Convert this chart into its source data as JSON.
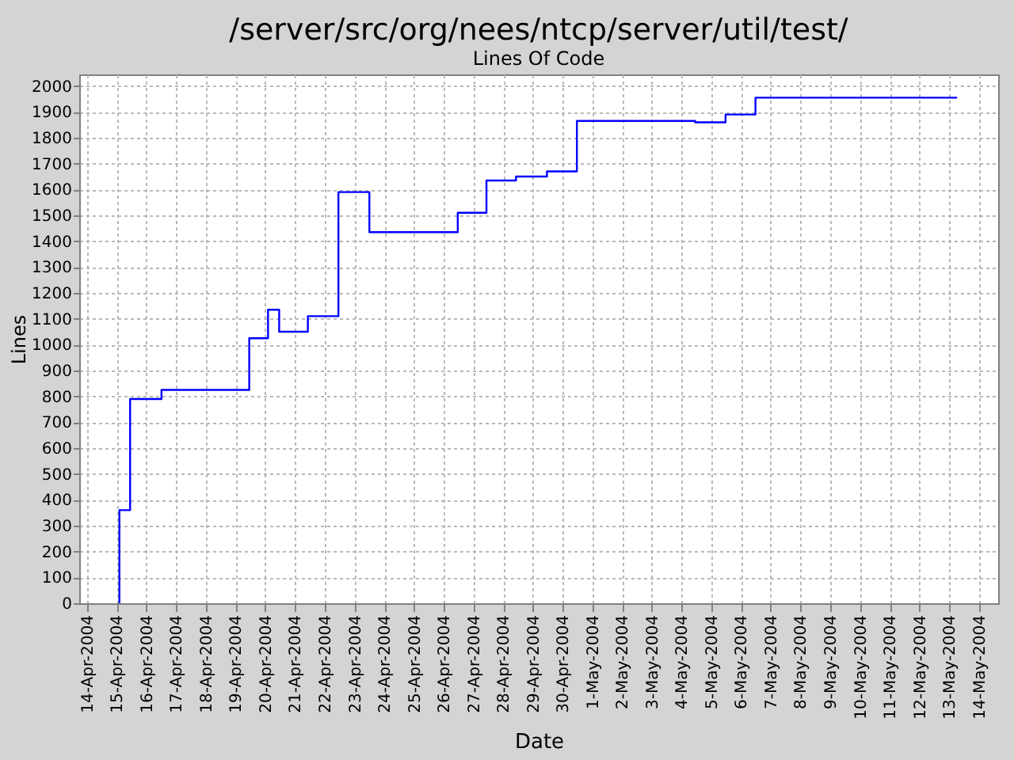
{
  "chart_data": {
    "type": "step",
    "title": "/server/src/org/nees/ntcp/server/util/test/",
    "subtitle": "Lines Of Code",
    "xlabel": "Date",
    "ylabel": "Lines",
    "x": [
      "2004-04-15T02:00",
      "2004-04-15T02:10",
      "2004-04-15T10:50",
      "2004-04-16T12:10",
      "2004-04-19T11:00",
      "2004-04-20T02:10",
      "2004-04-20T11:10",
      "2004-04-21T10:20",
      "2004-04-22T11:00",
      "2004-04-23T12:00",
      "2004-04-26T11:20",
      "2004-04-27T10:30",
      "2004-04-28T10:20",
      "2004-04-29T11:20",
      "2004-04-30T11:30",
      "2004-05-04T11:00",
      "2004-05-05T11:30",
      "2004-05-06T11:40",
      "2004-05-13T06:30"
    ],
    "values": [
      0,
      360,
      790,
      825,
      1025,
      1135,
      1050,
      1110,
      1590,
      1435,
      1510,
      1635,
      1650,
      1670,
      1865,
      1860,
      1890,
      1955,
      1955
    ],
    "color": "#0000ff",
    "xlim": [
      "2004-04-13T17:45",
      "2004-05-14T15:35"
    ],
    "xticks": [
      {
        "value": "2004-04-14",
        "label": "14-Apr-2004"
      },
      {
        "value": "2004-04-15",
        "label": "15-Apr-2004"
      },
      {
        "value": "2004-04-16",
        "label": "16-Apr-2004"
      },
      {
        "value": "2004-04-17",
        "label": "17-Apr-2004"
      },
      {
        "value": "2004-04-18",
        "label": "18-Apr-2004"
      },
      {
        "value": "2004-04-19",
        "label": "19-Apr-2004"
      },
      {
        "value": "2004-04-20",
        "label": "20-Apr-2004"
      },
      {
        "value": "2004-04-21",
        "label": "21-Apr-2004"
      },
      {
        "value": "2004-04-22",
        "label": "22-Apr-2004"
      },
      {
        "value": "2004-04-23",
        "label": "23-Apr-2004"
      },
      {
        "value": "2004-04-24",
        "label": "24-Apr-2004"
      },
      {
        "value": "2004-04-25",
        "label": "25-Apr-2004"
      },
      {
        "value": "2004-04-26",
        "label": "26-Apr-2004"
      },
      {
        "value": "2004-04-27",
        "label": "27-Apr-2004"
      },
      {
        "value": "2004-04-28",
        "label": "28-Apr-2004"
      },
      {
        "value": "2004-04-29",
        "label": "29-Apr-2004"
      },
      {
        "value": "2004-04-30",
        "label": "30-Apr-2004"
      },
      {
        "value": "2004-05-01",
        "label": "1-May-2004"
      },
      {
        "value": "2004-05-02",
        "label": "2-May-2004"
      },
      {
        "value": "2004-05-03",
        "label": "3-May-2004"
      },
      {
        "value": "2004-05-04",
        "label": "4-May-2004"
      },
      {
        "value": "2004-05-05",
        "label": "5-May-2004"
      },
      {
        "value": "2004-05-06",
        "label": "6-May-2004"
      },
      {
        "value": "2004-05-07",
        "label": "7-May-2004"
      },
      {
        "value": "2004-05-08",
        "label": "8-May-2004"
      },
      {
        "value": "2004-05-09",
        "label": "9-May-2004"
      },
      {
        "value": "2004-05-10",
        "label": "10-May-2004"
      },
      {
        "value": "2004-05-11",
        "label": "11-May-2004"
      },
      {
        "value": "2004-05-12",
        "label": "12-May-2004"
      },
      {
        "value": "2004-05-13",
        "label": "13-May-2004"
      },
      {
        "value": "2004-05-14",
        "label": "14-May-2004"
      }
    ],
    "ylim": [
      0,
      2045
    ],
    "yticks": [
      0,
      100,
      200,
      300,
      400,
      500,
      600,
      700,
      800,
      900,
      1000,
      1100,
      1200,
      1300,
      1400,
      1500,
      1600,
      1700,
      1800,
      1900,
      2000
    ],
    "grid": true
  }
}
